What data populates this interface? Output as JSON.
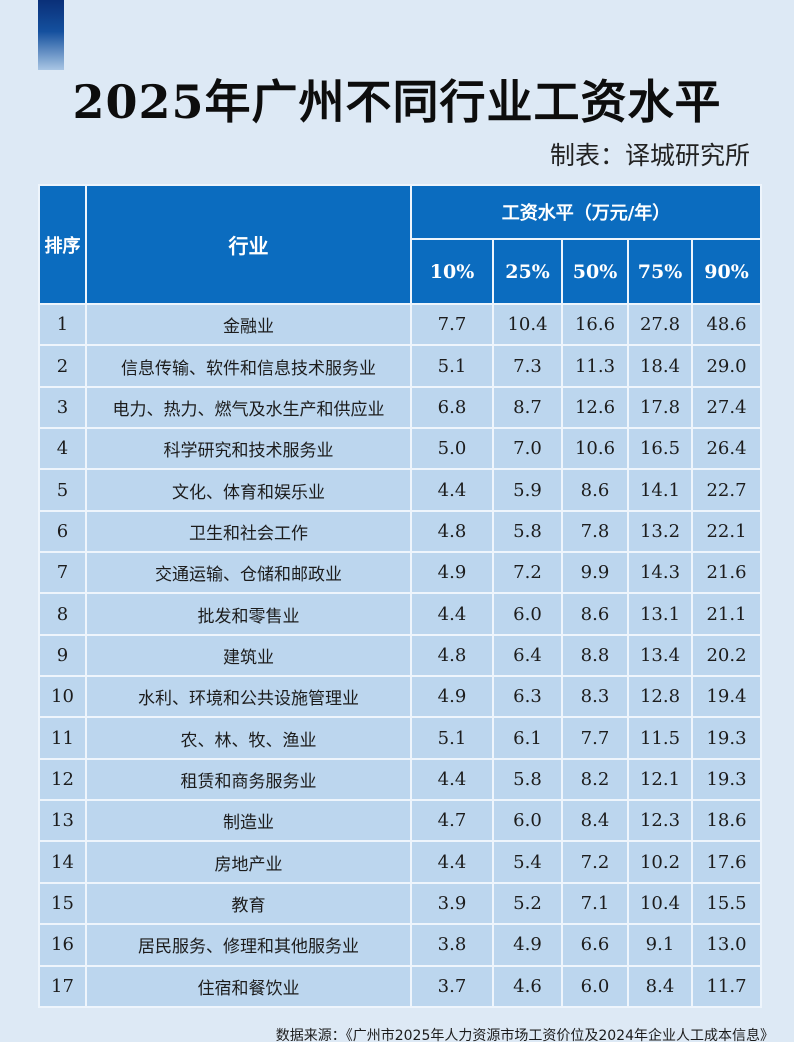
{
  "header": {
    "title": "2025年广州不同行业工资水平",
    "author": "制表：译城研究所"
  },
  "table": {
    "headers": {
      "rank": "排序",
      "industry": "行业",
      "wage_group": "工资水平（万元/年）",
      "percentiles": [
        "10%",
        "25%",
        "50%",
        "75%",
        "90%"
      ]
    },
    "rows": [
      {
        "rank": "1",
        "industry": "金融业",
        "values": [
          "7.7",
          "10.4",
          "16.6",
          "27.8",
          "48.6"
        ]
      },
      {
        "rank": "2",
        "industry": "信息传输、软件和信息技术服务业",
        "values": [
          "5.1",
          "7.3",
          "11.3",
          "18.4",
          "29.0"
        ]
      },
      {
        "rank": "3",
        "industry": "电力、热力、燃气及水生产和供应业",
        "values": [
          "6.8",
          "8.7",
          "12.6",
          "17.8",
          "27.4"
        ]
      },
      {
        "rank": "4",
        "industry": "科学研究和技术服务业",
        "values": [
          "5.0",
          "7.0",
          "10.6",
          "16.5",
          "26.4"
        ]
      },
      {
        "rank": "5",
        "industry": "文化、体育和娱乐业",
        "values": [
          "4.4",
          "5.9",
          "8.6",
          "14.1",
          "22.7"
        ]
      },
      {
        "rank": "6",
        "industry": "卫生和社会工作",
        "values": [
          "4.8",
          "5.8",
          "7.8",
          "13.2",
          "22.1"
        ]
      },
      {
        "rank": "7",
        "industry": "交通运输、仓储和邮政业",
        "values": [
          "4.9",
          "7.2",
          "9.9",
          "14.3",
          "21.6"
        ]
      },
      {
        "rank": "8",
        "industry": "批发和零售业",
        "values": [
          "4.4",
          "6.0",
          "8.6",
          "13.1",
          "21.1"
        ]
      },
      {
        "rank": "9",
        "industry": "建筑业",
        "values": [
          "4.8",
          "6.4",
          "8.8",
          "13.4",
          "20.2"
        ]
      },
      {
        "rank": "10",
        "industry": "水利、环境和公共设施管理业",
        "values": [
          "4.9",
          "6.3",
          "8.3",
          "12.8",
          "19.4"
        ]
      },
      {
        "rank": "11",
        "industry": "农、林、牧、渔业",
        "values": [
          "5.1",
          "6.1",
          "7.7",
          "11.5",
          "19.3"
        ]
      },
      {
        "rank": "12",
        "industry": "租赁和商务服务业",
        "values": [
          "4.4",
          "5.8",
          "8.2",
          "12.1",
          "19.3"
        ]
      },
      {
        "rank": "13",
        "industry": "制造业",
        "values": [
          "4.7",
          "6.0",
          "8.4",
          "12.3",
          "18.6"
        ]
      },
      {
        "rank": "14",
        "industry": "房地产业",
        "values": [
          "4.4",
          "5.4",
          "7.2",
          "10.2",
          "17.6"
        ]
      },
      {
        "rank": "15",
        "industry": "教育",
        "values": [
          "3.9",
          "5.2",
          "7.1",
          "10.4",
          "15.5"
        ]
      },
      {
        "rank": "16",
        "industry": "居民服务、修理和其他服务业",
        "values": [
          "3.8",
          "4.9",
          "6.6",
          "9.1",
          "13.0"
        ]
      },
      {
        "rank": "17",
        "industry": "住宿和餐饮业",
        "values": [
          "3.7",
          "4.6",
          "6.0",
          "8.4",
          "11.7"
        ]
      }
    ]
  },
  "footer": {
    "source": "数据来源：《广州市2025年人力资源市场工资价位及2024年企业人工成本信息》"
  },
  "colors": {
    "background": "#dde9f5",
    "header_fill": "#0b6cbf",
    "row_fill": "#bcd6ee",
    "accent_bar_top": "#0a2f78"
  }
}
